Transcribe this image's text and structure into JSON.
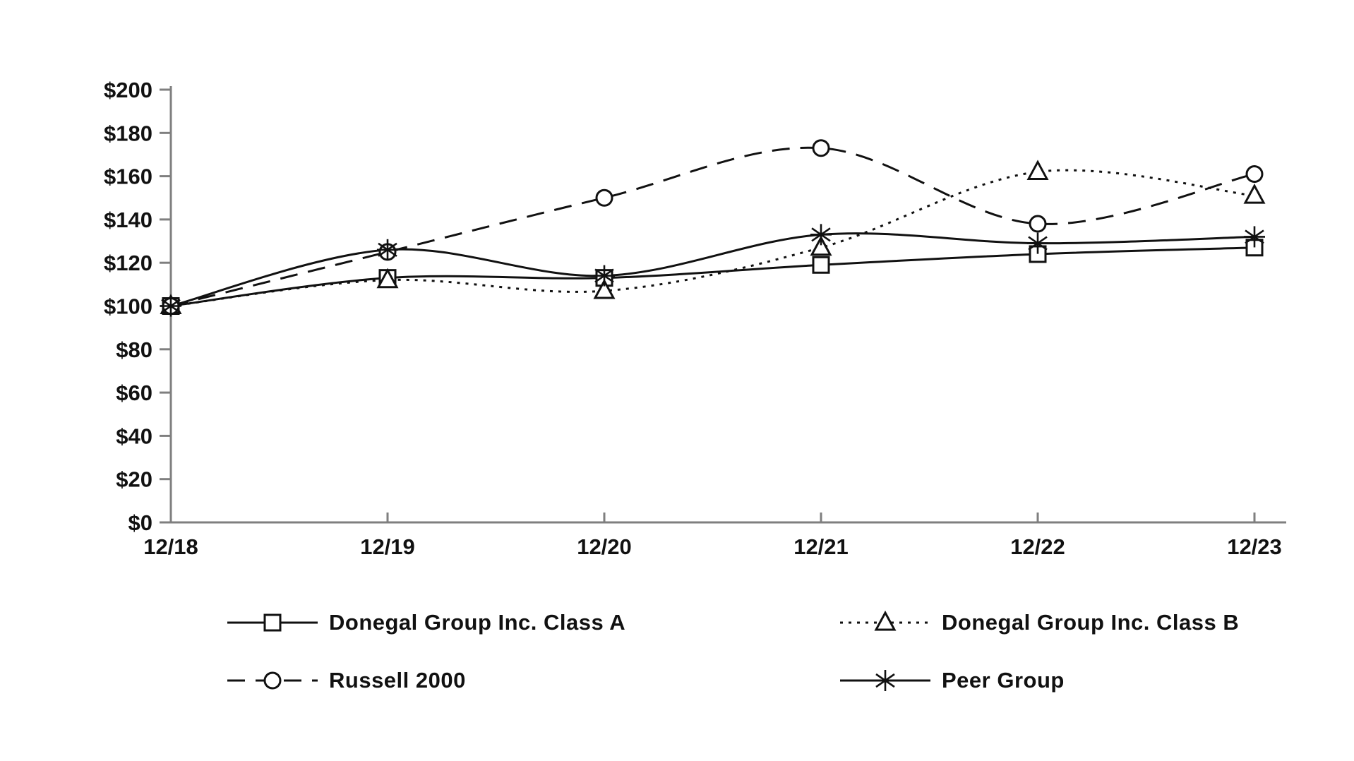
{
  "figure": {
    "background": "#ffffff"
  },
  "colors": {
    "axis": "#7f7f7f",
    "ink": "#111111",
    "marker_fill": "#ffffff"
  },
  "chart_data": {
    "type": "line",
    "title": "",
    "categories": [
      "12/18",
      "12/19",
      "12/20",
      "12/21",
      "12/22",
      "12/23"
    ],
    "y_ticks": [
      "$0",
      "$20",
      "$40",
      "$60",
      "$80",
      "$100",
      "$120",
      "$140",
      "$160",
      "$180",
      "$200"
    ],
    "ylim": [
      0,
      200
    ],
    "y_step": 20,
    "grid": false,
    "line_smoothing": true,
    "legend_position": "bottom-two-columns",
    "series": [
      {
        "name": "Donegal Group Inc. Class A",
        "marker": "square",
        "line": "solid",
        "values": [
          100,
          113,
          113,
          119,
          124,
          127
        ]
      },
      {
        "name": "Donegal Group Inc. Class B",
        "marker": "triangle",
        "line": "dotted",
        "values": [
          100,
          112,
          107,
          127,
          162,
          151
        ]
      },
      {
        "name": "Russell 2000",
        "marker": "circle",
        "line": "dashed",
        "values": [
          100,
          125,
          150,
          173,
          138,
          161
        ]
      },
      {
        "name": "Peer Group",
        "marker": "asterisk",
        "line": "solid",
        "values": [
          100,
          126,
          114,
          133,
          129,
          132
        ]
      }
    ]
  }
}
